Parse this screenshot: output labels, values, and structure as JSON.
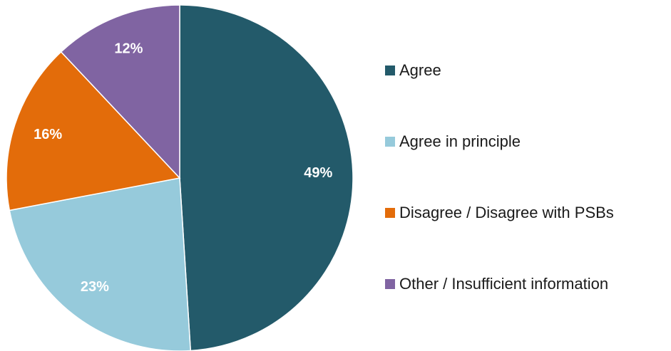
{
  "chart_data": {
    "type": "pie",
    "categories": [
      "Agree",
      "Agree in principle",
      "Disagree / Disagree with PSBs",
      "Other / Insufficient information"
    ],
    "values": [
      49,
      23,
      16,
      12
    ],
    "data_labels": [
      "49%",
      "23%",
      "16%",
      "12%"
    ],
    "colors": [
      "#235a6a",
      "#96cadb",
      "#e36c0a",
      "#8064a2"
    ],
    "title": "",
    "legend_position": "right",
    "start_angle": "12 o'clock",
    "direction": "clockwise"
  }
}
